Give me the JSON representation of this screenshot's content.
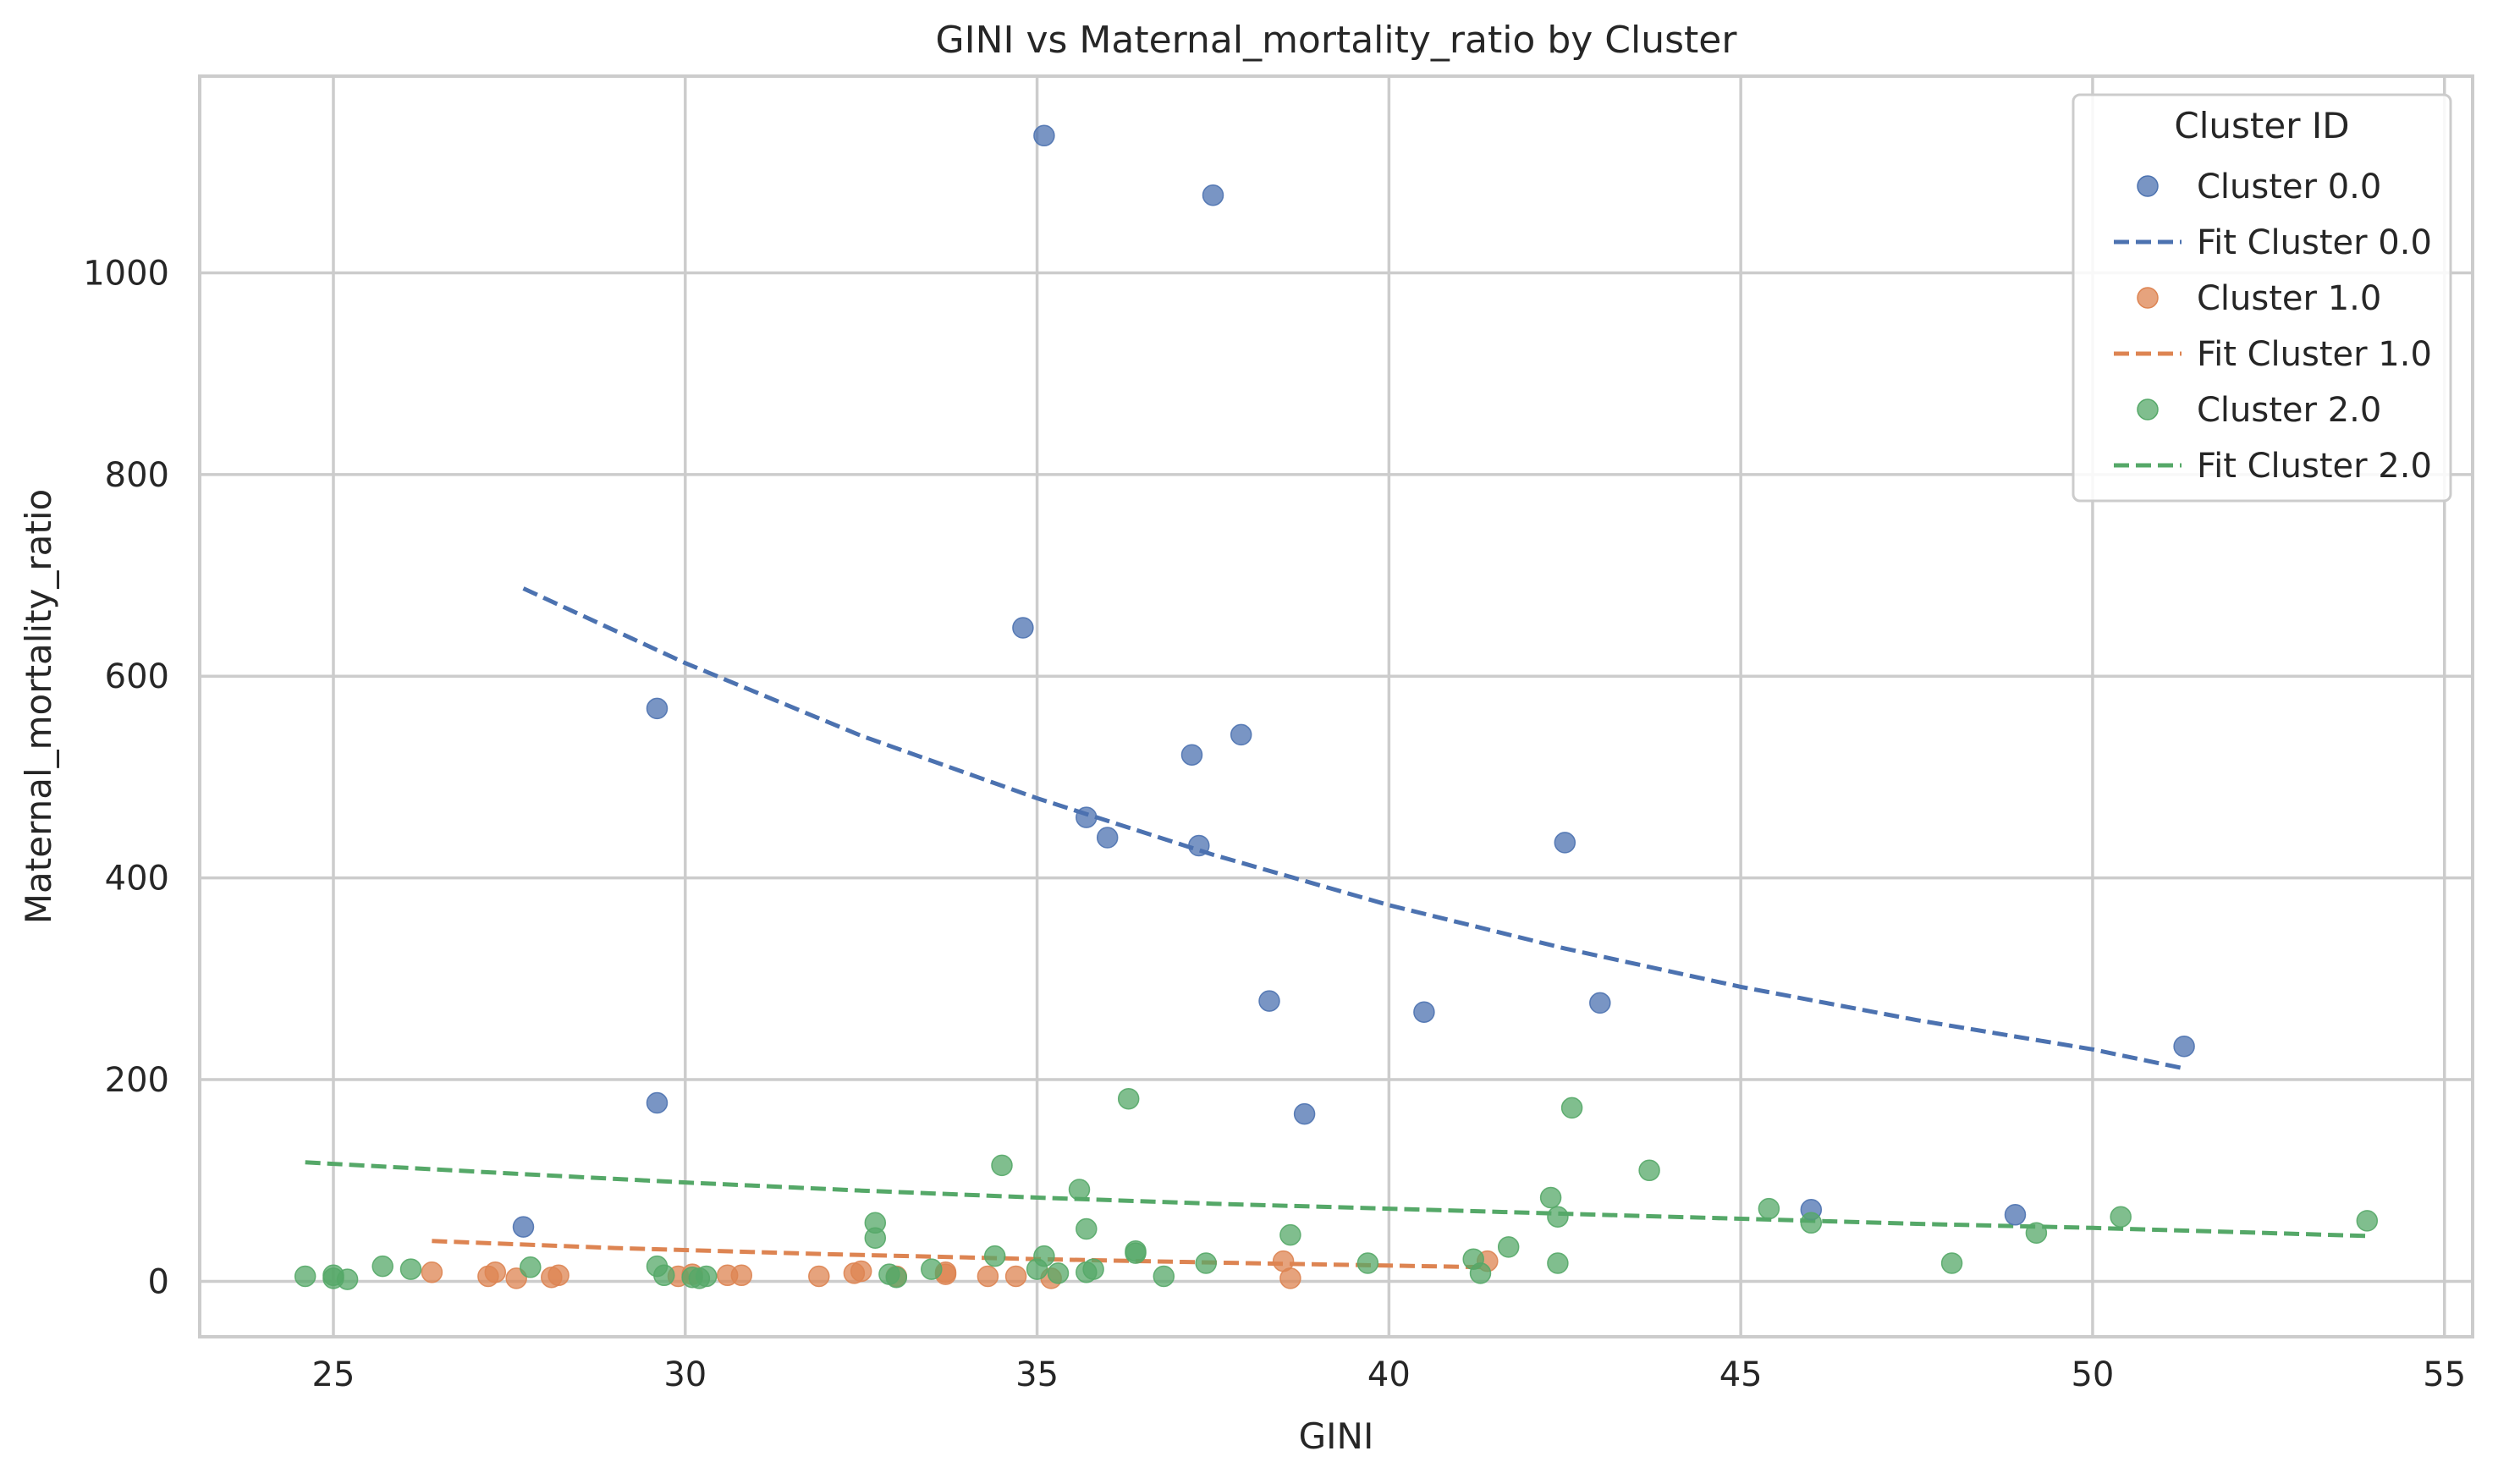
{
  "chart_data": {
    "type": "scatter",
    "title": "GINI vs Maternal_mortality_ratio by Cluster",
    "xlabel": "GINI",
    "ylabel": "Maternal_mortality_ratio",
    "xlim": [
      23.1,
      55.4
    ],
    "ylim": [
      -55,
      1195
    ],
    "xticks": [
      25,
      30,
      35,
      40,
      45,
      50,
      55
    ],
    "yticks": [
      0,
      200,
      400,
      600,
      800,
      1000
    ],
    "grid": true,
    "legend": {
      "title": "Cluster ID",
      "placement": "top-right",
      "entries": [
        "Cluster 0.0",
        "Fit Cluster 0.0",
        "Cluster 1.0",
        "Fit Cluster 1.0",
        "Cluster 2.0",
        "Fit Cluster 2.0"
      ]
    },
    "series": [
      {
        "name": "Cluster 0.0",
        "color": "#4c72b0",
        "points": [
          [
            35.1,
            1136
          ],
          [
            37.5,
            1077
          ],
          [
            34.8,
            648
          ],
          [
            29.6,
            568
          ],
          [
            37.2,
            522
          ],
          [
            37.9,
            542
          ],
          [
            35.7,
            460
          ],
          [
            36.0,
            440
          ],
          [
            37.3,
            432
          ],
          [
            42.5,
            435
          ],
          [
            38.3,
            278
          ],
          [
            40.5,
            267
          ],
          [
            43.0,
            276
          ],
          [
            29.6,
            177
          ],
          [
            38.8,
            166
          ],
          [
            27.7,
            54
          ],
          [
            46.0,
            71
          ],
          [
            48.9,
            66
          ],
          [
            51.3,
            233
          ]
        ],
        "fit": {
          "label": "Fit Cluster 0.0",
          "points": [
            [
              27.7,
              687
            ],
            [
              30,
              613
            ],
            [
              32.5,
              541
            ],
            [
              35,
              479
            ],
            [
              37.5,
              423
            ],
            [
              40,
              373
            ],
            [
              42.5,
              330
            ],
            [
              45,
              292
            ],
            [
              47.5,
              259
            ],
            [
              50,
              230
            ],
            [
              51.3,
              211
            ]
          ]
        }
      },
      {
        "name": "Cluster 1.0",
        "color": "#dd8452",
        "points": [
          [
            26.4,
            9
          ],
          [
            27.2,
            5
          ],
          [
            27.3,
            9
          ],
          [
            27.6,
            3
          ],
          [
            28.1,
            4
          ],
          [
            28.2,
            6
          ],
          [
            29.9,
            5
          ],
          [
            30.1,
            7
          ],
          [
            30.6,
            6
          ],
          [
            30.8,
            6
          ],
          [
            31.9,
            5
          ],
          [
            32.4,
            8
          ],
          [
            32.5,
            10
          ],
          [
            33.0,
            5
          ],
          [
            33.7,
            9
          ],
          [
            33.7,
            7
          ],
          [
            34.3,
            5
          ],
          [
            34.7,
            5
          ],
          [
            35.2,
            3
          ],
          [
            38.5,
            20
          ],
          [
            38.6,
            3
          ],
          [
            41.4,
            20
          ]
        ],
        "fit": {
          "label": "Fit Cluster 1.0",
          "points": [
            [
              26.4,
              40
            ],
            [
              29,
              33
            ],
            [
              32,
              27
            ],
            [
              35,
              22
            ],
            [
              38,
              18
            ],
            [
              41.4,
              14
            ]
          ]
        }
      },
      {
        "name": "Cluster 2.0",
        "color": "#55a868",
        "points": [
          [
            24.6,
            5
          ],
          [
            25.0,
            6
          ],
          [
            25.0,
            3
          ],
          [
            25.2,
            2
          ],
          [
            25.7,
            15
          ],
          [
            26.1,
            12
          ],
          [
            27.8,
            14
          ],
          [
            29.6,
            15
          ],
          [
            29.7,
            6
          ],
          [
            30.1,
            4
          ],
          [
            30.2,
            3
          ],
          [
            30.3,
            5
          ],
          [
            32.7,
            58
          ],
          [
            32.7,
            43
          ],
          [
            32.9,
            7
          ],
          [
            33.0,
            4
          ],
          [
            33.5,
            12
          ],
          [
            34.4,
            25
          ],
          [
            34.5,
            115
          ],
          [
            35.0,
            12
          ],
          [
            35.1,
            25
          ],
          [
            35.3,
            8
          ],
          [
            35.6,
            91
          ],
          [
            35.7,
            52
          ],
          [
            35.7,
            9
          ],
          [
            35.8,
            12
          ],
          [
            36.3,
            181
          ],
          [
            36.4,
            28
          ],
          [
            36.4,
            30
          ],
          [
            36.8,
            5
          ],
          [
            37.4,
            18
          ],
          [
            38.6,
            46
          ],
          [
            39.7,
            18
          ],
          [
            41.2,
            22
          ],
          [
            41.3,
            8
          ],
          [
            41.7,
            34
          ],
          [
            42.3,
            83
          ],
          [
            42.4,
            64
          ],
          [
            42.4,
            18
          ],
          [
            42.6,
            172
          ],
          [
            43.7,
            110
          ],
          [
            45.4,
            72
          ],
          [
            46.0,
            58
          ],
          [
            48.0,
            18
          ],
          [
            49.2,
            48
          ],
          [
            50.4,
            64
          ],
          [
            53.9,
            60
          ]
        ],
        "fit": {
          "label": "Fit Cluster 2.0",
          "points": [
            [
              24.6,
              118
            ],
            [
              27.5,
              107
            ],
            [
              30,
              98
            ],
            [
              32.5,
              90
            ],
            [
              35,
              83
            ],
            [
              37.5,
              77
            ],
            [
              40,
              72
            ],
            [
              42.5,
              67
            ],
            [
              45,
              62
            ],
            [
              47.5,
              57
            ],
            [
              50,
              53
            ],
            [
              53.9,
              45
            ]
          ]
        }
      }
    ]
  }
}
